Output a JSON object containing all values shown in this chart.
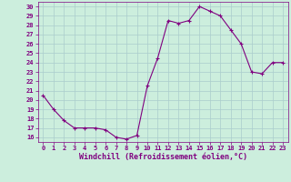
{
  "x": [
    0,
    1,
    2,
    3,
    4,
    5,
    6,
    7,
    8,
    9,
    10,
    11,
    12,
    13,
    14,
    15,
    16,
    17,
    18,
    19,
    20,
    21,
    22,
    23
  ],
  "y": [
    20.5,
    19.0,
    17.8,
    17.0,
    17.0,
    17.0,
    16.8,
    16.0,
    15.8,
    16.2,
    21.5,
    24.5,
    28.5,
    28.2,
    28.5,
    30.0,
    29.5,
    29.0,
    27.5,
    26.0,
    23.0,
    22.8,
    24.0,
    24.0
  ],
  "line_color": "#800080",
  "marker": "+",
  "marker_size": 3,
  "bg_color": "#cceedd",
  "grid_color": "#aacccc",
  "axis_color": "#800080",
  "xlabel": "Windchill (Refroidissement éolien,°C)",
  "xlim": [
    -0.5,
    23.5
  ],
  "ylim": [
    15.5,
    30.5
  ],
  "yticks": [
    16,
    17,
    18,
    19,
    20,
    21,
    22,
    23,
    24,
    25,
    26,
    27,
    28,
    29,
    30
  ],
  "xticks": [
    0,
    1,
    2,
    3,
    4,
    5,
    6,
    7,
    8,
    9,
    10,
    11,
    12,
    13,
    14,
    15,
    16,
    17,
    18,
    19,
    20,
    21,
    22,
    23
  ],
  "tick_fontsize": 5,
  "label_fontsize": 6,
  "title_color": "#800080"
}
